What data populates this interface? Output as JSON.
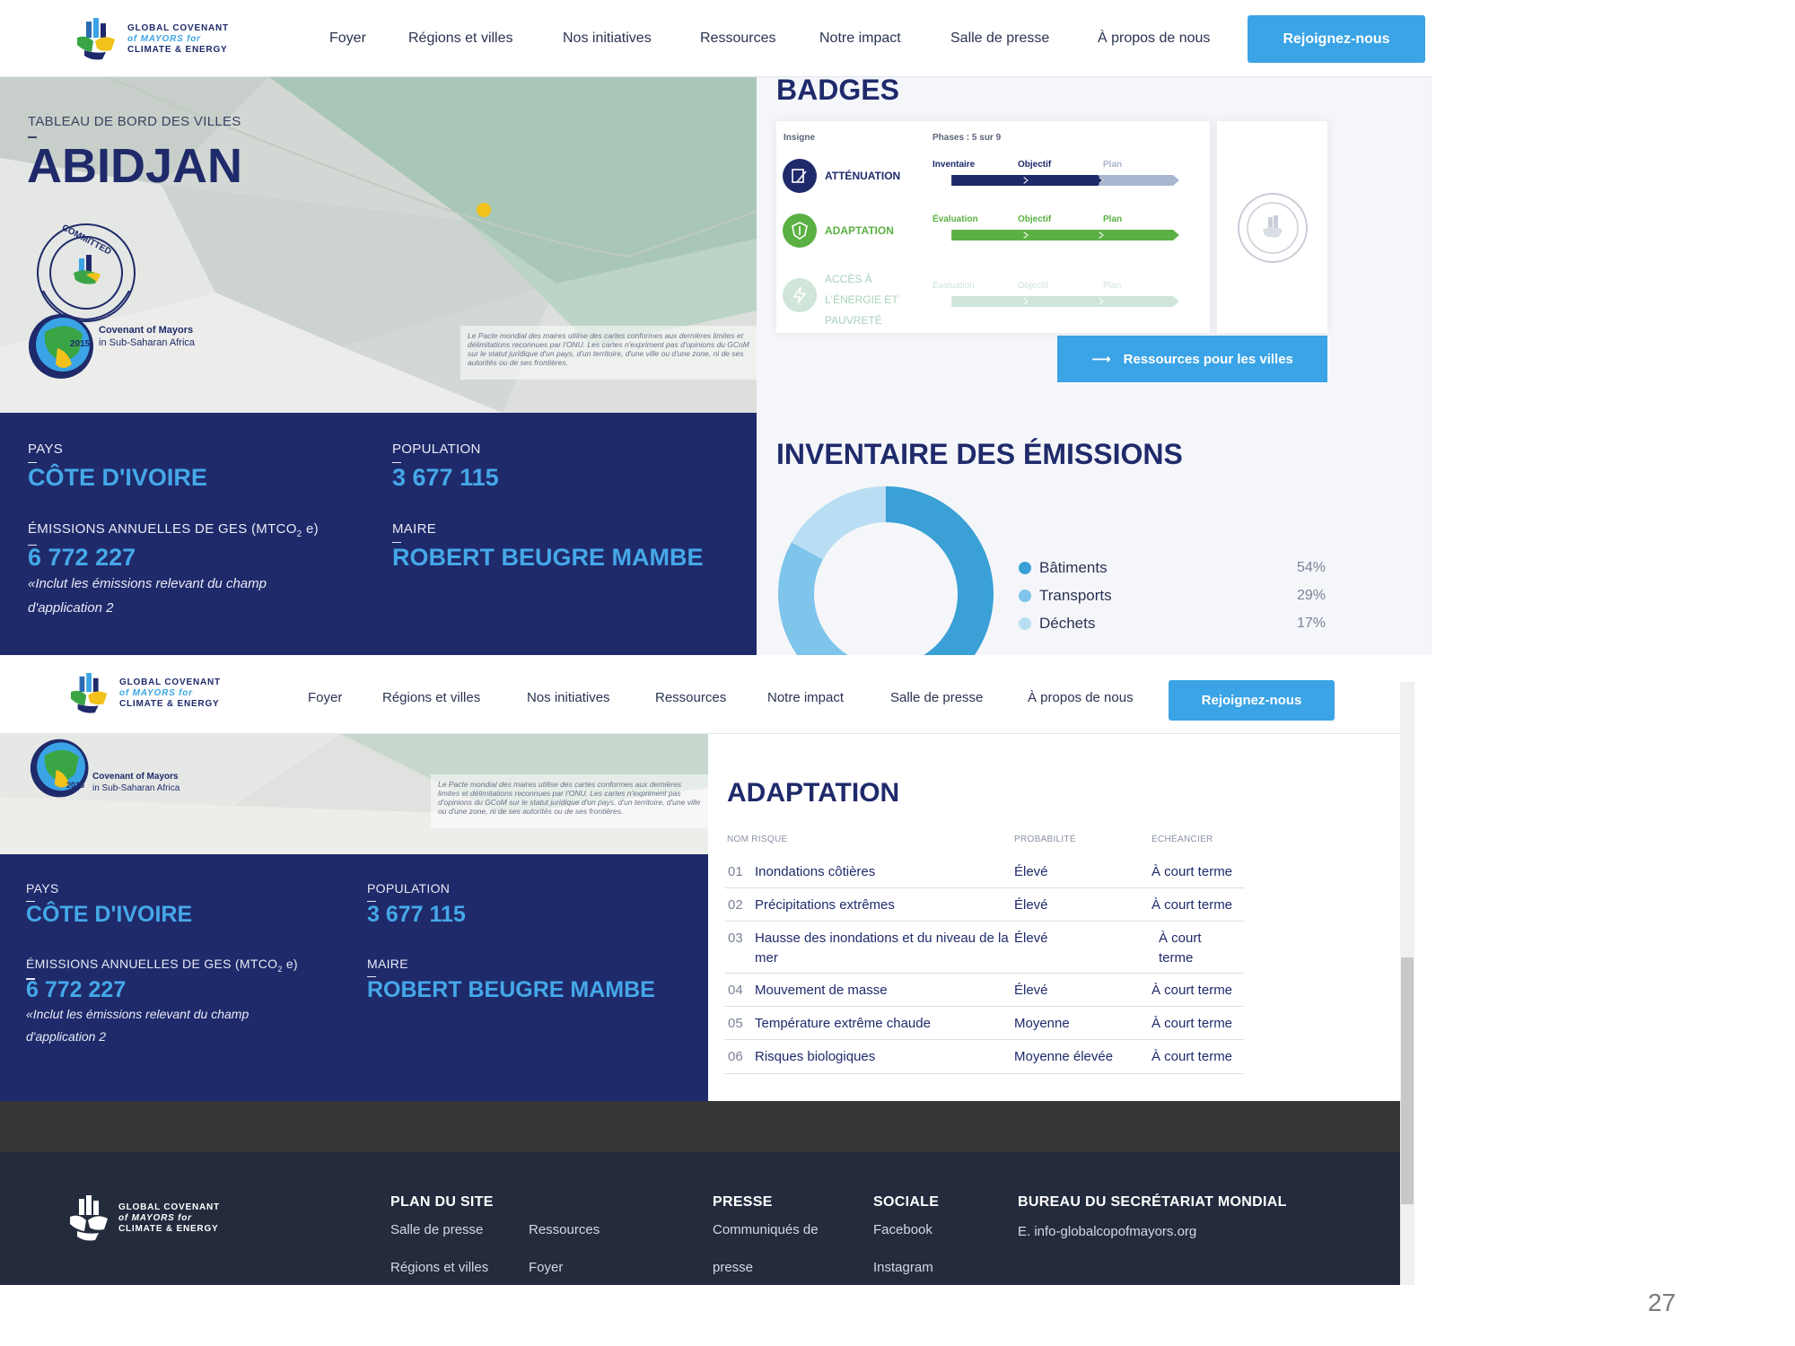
{
  "logo": {
    "line1": "GLOBAL COVENANT",
    "line2": "of MAYORS for",
    "line3": "CLIMATE & ENERGY"
  },
  "nav": {
    "items": [
      "Foyer",
      "Régions et villes",
      "Nos initiatives",
      "Ressources",
      "Notre impact",
      "Salle de presse",
      "À propos de nous"
    ],
    "join": "Rejoignez-nous"
  },
  "city": {
    "dashboard_label": "TABLEAU DE BORD DES VILLES",
    "name": "ABIDJAN",
    "map_note": "Le Pacte mondial des maires utilise des cartes conformes aux dernières limites et délimitations reconnues par l'ONU. Les cartes n'expriment pas d'opinions du GCoM sur le statut juridique d'un pays, d'un territoire, d'une ville ou d'une zone, ni de ses autorités ou de ses frontières.",
    "badge_committed": "COMMITTED",
    "covenant_label": "Covenant of Mayors",
    "covenant_sub": "in Sub-Saharan Africa",
    "covenant_year": "2015"
  },
  "info": {
    "country_label": "PAYS",
    "country": "CÔTE D'IVOIRE",
    "population_label": "POPULATION",
    "population": "3 677 115",
    "emissions_label_a": "ÉMISSIONS ANNUELLES DE GES (MTCO",
    "emissions_sub": "2",
    "emissions_label_b": " e)",
    "emissions": "6 772 227",
    "emissions_note": "«Inclut les émissions relevant du champ d'application 2",
    "mayor_label": "MAIRE",
    "mayor": "ROBERT BEUGRE MAMBE"
  },
  "badges": {
    "title": "BADGES",
    "col_insigne": "Insigne",
    "col_phases": "Phases : 5 sur 9",
    "rows": [
      {
        "name": "ATTÉNUATION",
        "phases": [
          "Inventaire",
          "Objectif",
          "Plan"
        ],
        "color": "#1f2a6b",
        "rest": "#a9b6cf",
        "progress": 0.67
      },
      {
        "name": "ADAPTATION",
        "phases": [
          "Évaluation",
          "Objectif",
          "Plan"
        ],
        "color": "#5bb043",
        "rest": "#5bb043",
        "progress": 1.0
      },
      {
        "name_lines": [
          "ACCÈS À",
          "L'ÉNERGIE ET",
          "PAUVRETÉ"
        ],
        "phases": [
          "Évaluation",
          "Objectif",
          "Plan"
        ],
        "color": "#cfe6d9",
        "rest": "#cfe6d9",
        "progress": 0.0
      }
    ],
    "resources_button": "Ressources pour les villes"
  },
  "emissions_inventory": {
    "title": "INVENTAIRE DES ÉMISSIONS",
    "legend": [
      {
        "name": "Bâtiments",
        "pct": "54%",
        "color": "#3aa0d6"
      },
      {
        "name": "Transports",
        "pct": "29%",
        "color": "#7fc4ea"
      },
      {
        "name": "Déchets",
        "pct": "17%",
        "color": "#b9def3"
      }
    ]
  },
  "adaptation": {
    "title": "ADAPTATION",
    "headers": {
      "name": "NOM RISQUE",
      "prob": "PROBABILITÉ",
      "time": "ÉCHÉANCIER"
    },
    "rows": [
      {
        "num": "01",
        "name": "Inondations côtières",
        "prob": "Élevé",
        "time": "À court terme"
      },
      {
        "num": "02",
        "name": "Précipitations extrêmes",
        "prob": "Élevé",
        "time": "À court terme"
      },
      {
        "num": "03",
        "name": "Hausse des inondations et du niveau de la",
        "name2": "mer",
        "prob": "Élevé",
        "time": "À court",
        "time2": "terme"
      },
      {
        "num": "04",
        "name": "Mouvement de masse",
        "prob": "Élevé",
        "time": "À court terme"
      },
      {
        "num": "05",
        "name": "Température extrême chaude",
        "prob": "Moyenne",
        "time": "À court terme"
      },
      {
        "num": "06",
        "name": "Risques biologiques",
        "prob": "Moyenne élevée",
        "time": "À court terme"
      }
    ]
  },
  "footer": {
    "sitemap_title": "PLAN DU SITE",
    "sitemap": [
      "Salle de presse",
      "Ressources",
      "Régions et villes",
      "Foyer"
    ],
    "press_title": "PRESSE",
    "press_links": [
      "Communiqués de",
      "presse"
    ],
    "social_title": "SOCIALE",
    "social": [
      "Facebook",
      "Instagram"
    ],
    "bureau_title": "BUREAU DU SECRÉTARIAT MONDIAL",
    "email": "E. info-globalcopofmayors.org"
  },
  "page_number": "27"
}
